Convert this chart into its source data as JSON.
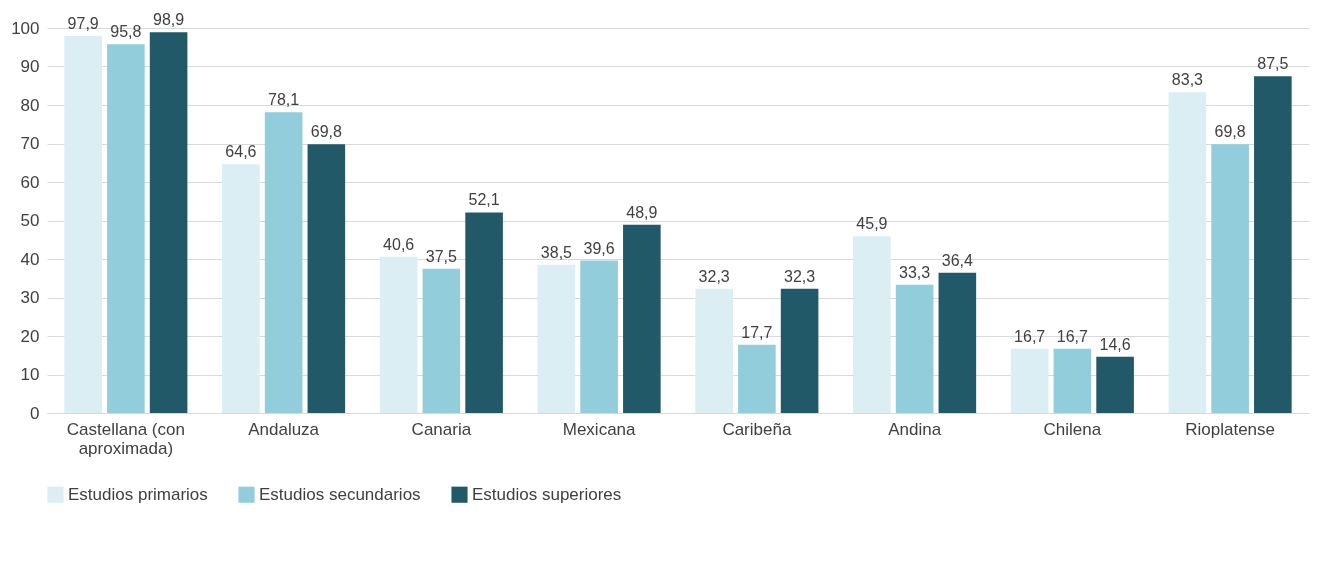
{
  "chart_data": {
    "type": "bar",
    "categories": [
      "Castellana (con aproximada)",
      "Andaluza",
      "Canaria",
      "Mexicana",
      "Caribeña",
      "Andina",
      "Chilena",
      "Rioplatense"
    ],
    "series": [
      {
        "name": "Estudios primarios",
        "color": "#daeef3",
        "values": [
          97.9,
          64.6,
          40.6,
          38.5,
          32.3,
          45.9,
          16.7,
          83.3
        ],
        "value_labels": [
          "97,9",
          "64,6",
          "40,6",
          "38,5",
          "32,3",
          "45,9",
          "16,7",
          "83,3"
        ]
      },
      {
        "name": "Estudios secundarios",
        "color": "#92cddc",
        "values": [
          95.8,
          78.1,
          37.5,
          39.6,
          17.7,
          33.3,
          16.7,
          69.8
        ],
        "value_labels": [
          "95,8",
          "78,1",
          "37,5",
          "39,6",
          "17,7",
          "33,3",
          "16,7",
          "69,8"
        ]
      },
      {
        "name": "Estudios superiores",
        "color": "#215968",
        "values": [
          98.9,
          69.8,
          52.1,
          48.9,
          32.3,
          36.4,
          14.6,
          87.5
        ],
        "value_labels": [
          "98,9",
          "69,8",
          "52,1",
          "48,9",
          "32,3",
          "36,4",
          "14,6",
          "87,5"
        ]
      }
    ],
    "ylim": [
      0,
      100
    ],
    "yticks": [
      0,
      10,
      20,
      30,
      40,
      50,
      60,
      70,
      80,
      90,
      100
    ],
    "grid": "y",
    "legend": "bottom"
  }
}
